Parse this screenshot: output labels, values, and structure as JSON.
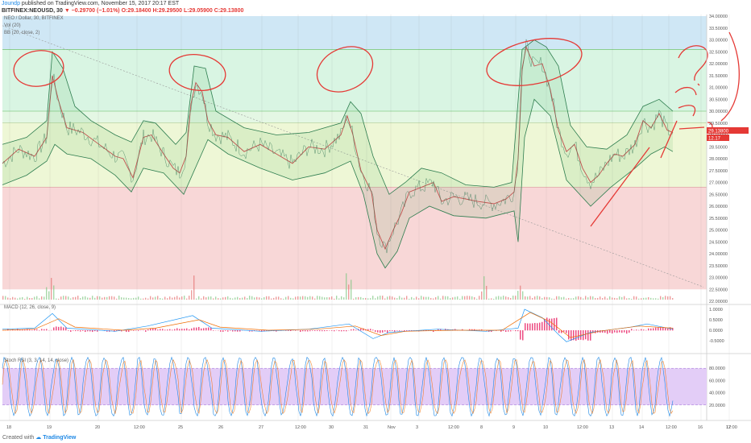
{
  "header": {
    "author": "Joundp",
    "published_text": "published on TradingView.com, November 15, 2017 20:17 EST",
    "symbol_line": "BITFINEX:NEOUSD, 30",
    "change": "▼ −0.29700 (−1.01%)",
    "ohlc": "O:29.18400 H:29.29500 L:29.05900 C:29.13800"
  },
  "indicators": {
    "pane_title": "NEO / Dollar, 30, BITFINEX",
    "vol_label": "Vol (20)",
    "bb_label": "BB (20, close, 2)",
    "macd_label": "MACD (12, 26, close, 9)",
    "stoch_label": "Stoch RSI (3, 3, 14, 14, close)"
  },
  "footer": {
    "created_with": "Created with",
    "brand": "TradingView"
  },
  "colors": {
    "price_line": "#3a7a5a",
    "bb_band": "#2e7d4f",
    "annotation": "#e53935",
    "zone_top": "#cfe7f5",
    "zone_mid": "#d9f5e3",
    "zone_low": "#eef7d6",
    "zone_red": "#f8d7d7",
    "stoch_fill": "#e3cdf7"
  },
  "chart_data": {
    "type": "line",
    "price_axis": [
      "34.00000",
      "33.50000",
      "33.00000",
      "32.50000",
      "32.00000",
      "31.50000",
      "31.00000",
      "30.50000",
      "30.00000",
      "29.50000",
      "29.00000",
      "28.50000",
      "28.00000",
      "27.50000",
      "27.00000",
      "26.50000",
      "26.00000",
      "25.50000",
      "25.00000",
      "24.50000",
      "24.00000",
      "23.50000",
      "23.00000",
      "22.50000",
      "22.00000"
    ],
    "current_price": "29.13800",
    "current_volume": "12.17",
    "x_ticks": [
      "18",
      "19",
      "20",
      "12:00",
      "25",
      "26",
      "27",
      "12:00",
      "30",
      "31",
      "Nov",
      "3",
      "12:00",
      "8",
      "9",
      "10",
      "12:00",
      "13",
      "14",
      "12:00",
      "16",
      "17",
      "12:00"
    ],
    "macd_axis": [
      "1.0000",
      "0.5000",
      "0.0000",
      "-0.5000"
    ],
    "stoch_axis": [
      "80.0000",
      "60.0000",
      "40.0000",
      "20.0000"
    ],
    "ylim": [
      22.0,
      34.0
    ],
    "price": [
      [
        0,
        27.8
      ],
      [
        20,
        28.4
      ],
      [
        40,
        28.1
      ],
      [
        55,
        28.9
      ],
      [
        62,
        31.5
      ],
      [
        70,
        30.4
      ],
      [
        80,
        29.3
      ],
      [
        100,
        29.1
      ],
      [
        120,
        28.6
      ],
      [
        140,
        28.1
      ],
      [
        150,
        28.0
      ],
      [
        162,
        27.2
      ],
      [
        175,
        28.9
      ],
      [
        185,
        29.0
      ],
      [
        200,
        28.2
      ],
      [
        212,
        27.6
      ],
      [
        220,
        27.4
      ],
      [
        228,
        28.1
      ],
      [
        234,
        30.3
      ],
      [
        240,
        31.2
      ],
      [
        248,
        30.8
      ],
      [
        255,
        29.6
      ],
      [
        265,
        29.0
      ],
      [
        280,
        28.9
      ],
      [
        300,
        28.3
      ],
      [
        320,
        28.6
      ],
      [
        340,
        28.2
      ],
      [
        360,
        27.8
      ],
      [
        380,
        28.5
      ],
      [
        400,
        28.4
      ],
      [
        420,
        29.0
      ],
      [
        428,
        29.8
      ],
      [
        435,
        29.0
      ],
      [
        445,
        27.5
      ],
      [
        458,
        26.6
      ],
      [
        465,
        25.0
      ],
      [
        475,
        24.2
      ],
      [
        485,
        25.0
      ],
      [
        495,
        25.7
      ],
      [
        505,
        26.6
      ],
      [
        520,
        26.8
      ],
      [
        535,
        27.0
      ],
      [
        545,
        26.2
      ],
      [
        560,
        26.4
      ],
      [
        575,
        26.3
      ],
      [
        590,
        26.2
      ],
      [
        610,
        26.1
      ],
      [
        625,
        26.3
      ],
      [
        635,
        26.6
      ],
      [
        640,
        28.0
      ],
      [
        645,
        31.8
      ],
      [
        650,
        32.7
      ],
      [
        660,
        31.9
      ],
      [
        670,
        32.0
      ],
      [
        680,
        30.9
      ],
      [
        690,
        29.2
      ],
      [
        700,
        28.3
      ],
      [
        710,
        28.6
      ],
      [
        720,
        27.6
      ],
      [
        730,
        27.0
      ],
      [
        740,
        27.3
      ],
      [
        750,
        27.8
      ],
      [
        760,
        28.2
      ],
      [
        770,
        28.1
      ],
      [
        785,
        28.6
      ],
      [
        795,
        29.6
      ],
      [
        805,
        29.3
      ],
      [
        815,
        29.9
      ],
      [
        825,
        29.2
      ],
      [
        832,
        29.1
      ]
    ],
    "bb_upper": [
      [
        0,
        28.6
      ],
      [
        30,
        28.9
      ],
      [
        55,
        29.6
      ],
      [
        62,
        32.5
      ],
      [
        75,
        31.8
      ],
      [
        90,
        30.2
      ],
      [
        110,
        29.6
      ],
      [
        140,
        29.0
      ],
      [
        160,
        28.7
      ],
      [
        175,
        29.6
      ],
      [
        190,
        29.5
      ],
      [
        215,
        28.6
      ],
      [
        228,
        29.1
      ],
      [
        238,
        31.9
      ],
      [
        252,
        31.8
      ],
      [
        265,
        30.0
      ],
      [
        300,
        29.3
      ],
      [
        340,
        29.0
      ],
      [
        380,
        29.1
      ],
      [
        420,
        29.5
      ],
      [
        432,
        30.4
      ],
      [
        445,
        29.9
      ],
      [
        460,
        28.1
      ],
      [
        480,
        26.5
      ],
      [
        500,
        27.0
      ],
      [
        520,
        27.6
      ],
      [
        545,
        27.4
      ],
      [
        575,
        26.9
      ],
      [
        610,
        26.8
      ],
      [
        632,
        27.0
      ],
      [
        645,
        32.6
      ],
      [
        660,
        33.0
      ],
      [
        675,
        32.7
      ],
      [
        690,
        31.9
      ],
      [
        705,
        29.4
      ],
      [
        725,
        28.5
      ],
      [
        750,
        28.4
      ],
      [
        775,
        29.0
      ],
      [
        795,
        30.2
      ],
      [
        815,
        30.5
      ],
      [
        832,
        30.0
      ]
    ],
    "bb_lower": [
      [
        0,
        26.9
      ],
      [
        30,
        27.3
      ],
      [
        55,
        27.9
      ],
      [
        65,
        28.6
      ],
      [
        80,
        28.2
      ],
      [
        110,
        28.0
      ],
      [
        140,
        27.3
      ],
      [
        160,
        26.6
      ],
      [
        175,
        27.6
      ],
      [
        200,
        27.4
      ],
      [
        225,
        26.5
      ],
      [
        238,
        27.5
      ],
      [
        255,
        28.8
      ],
      [
        280,
        28.2
      ],
      [
        320,
        27.6
      ],
      [
        360,
        27.1
      ],
      [
        400,
        27.4
      ],
      [
        432,
        27.9
      ],
      [
        448,
        26.5
      ],
      [
        465,
        24.0
      ],
      [
        475,
        23.4
      ],
      [
        490,
        24.1
      ],
      [
        505,
        25.5
      ],
      [
        530,
        26.0
      ],
      [
        560,
        25.6
      ],
      [
        600,
        25.5
      ],
      [
        635,
        25.8
      ],
      [
        640,
        24.5
      ],
      [
        648,
        28.9
      ],
      [
        660,
        30.5
      ],
      [
        680,
        29.8
      ],
      [
        700,
        27.1
      ],
      [
        730,
        26.0
      ],
      [
        755,
        26.8
      ],
      [
        785,
        27.6
      ],
      [
        805,
        28.2
      ],
      [
        822,
        28.5
      ],
      [
        832,
        28.3
      ]
    ],
    "zones": [
      {
        "from": 32.6,
        "to": 34.0,
        "color": "#cfe7f5"
      },
      {
        "from": 30.0,
        "to": 32.6,
        "color": "#d9f5e3"
      },
      {
        "from": 29.5,
        "to": 30.0,
        "color": "#e4f7e4"
      },
      {
        "from": 26.8,
        "to": 29.5,
        "color": "#eef7d6"
      },
      {
        "from": 22.5,
        "to": 26.8,
        "color": "#f8d7d7"
      }
    ],
    "trendline": [
      [
        0,
        33.6
      ],
      [
        870,
        22.6
      ]
    ],
    "macd": [
      [
        0,
        0.05
      ],
      [
        40,
        0.1
      ],
      [
        62,
        0.8
      ],
      [
        80,
        0.1
      ],
      [
        140,
        -0.05
      ],
      [
        180,
        0.2
      ],
      [
        236,
        0.7
      ],
      [
        260,
        0.1
      ],
      [
        320,
        -0.05
      ],
      [
        380,
        0.05
      ],
      [
        430,
        0.3
      ],
      [
        460,
        -0.4
      ],
      [
        480,
        -0.1
      ],
      [
        540,
        0.05
      ],
      [
        600,
        -0.05
      ],
      [
        640,
        0.1
      ],
      [
        648,
        1.0
      ],
      [
        670,
        0.6
      ],
      [
        690,
        -0.2
      ],
      [
        700,
        -0.55
      ],
      [
        730,
        -0.1
      ],
      [
        780,
        0.15
      ],
      [
        800,
        0.3
      ],
      [
        832,
        0.05
      ]
    ],
    "macd_signal": [
      [
        0,
        0.0
      ],
      [
        40,
        0.05
      ],
      [
        70,
        0.55
      ],
      [
        90,
        0.15
      ],
      [
        150,
        0.0
      ],
      [
        190,
        0.1
      ],
      [
        244,
        0.5
      ],
      [
        270,
        0.15
      ],
      [
        330,
        0.0
      ],
      [
        390,
        0.05
      ],
      [
        438,
        0.2
      ],
      [
        470,
        -0.25
      ],
      [
        500,
        -0.05
      ],
      [
        560,
        0.0
      ],
      [
        620,
        0.0
      ],
      [
        655,
        0.85
      ],
      [
        680,
        0.4
      ],
      [
        705,
        -0.35
      ],
      [
        740,
        -0.05
      ],
      [
        790,
        0.2
      ],
      [
        832,
        0.1
      ]
    ]
  }
}
